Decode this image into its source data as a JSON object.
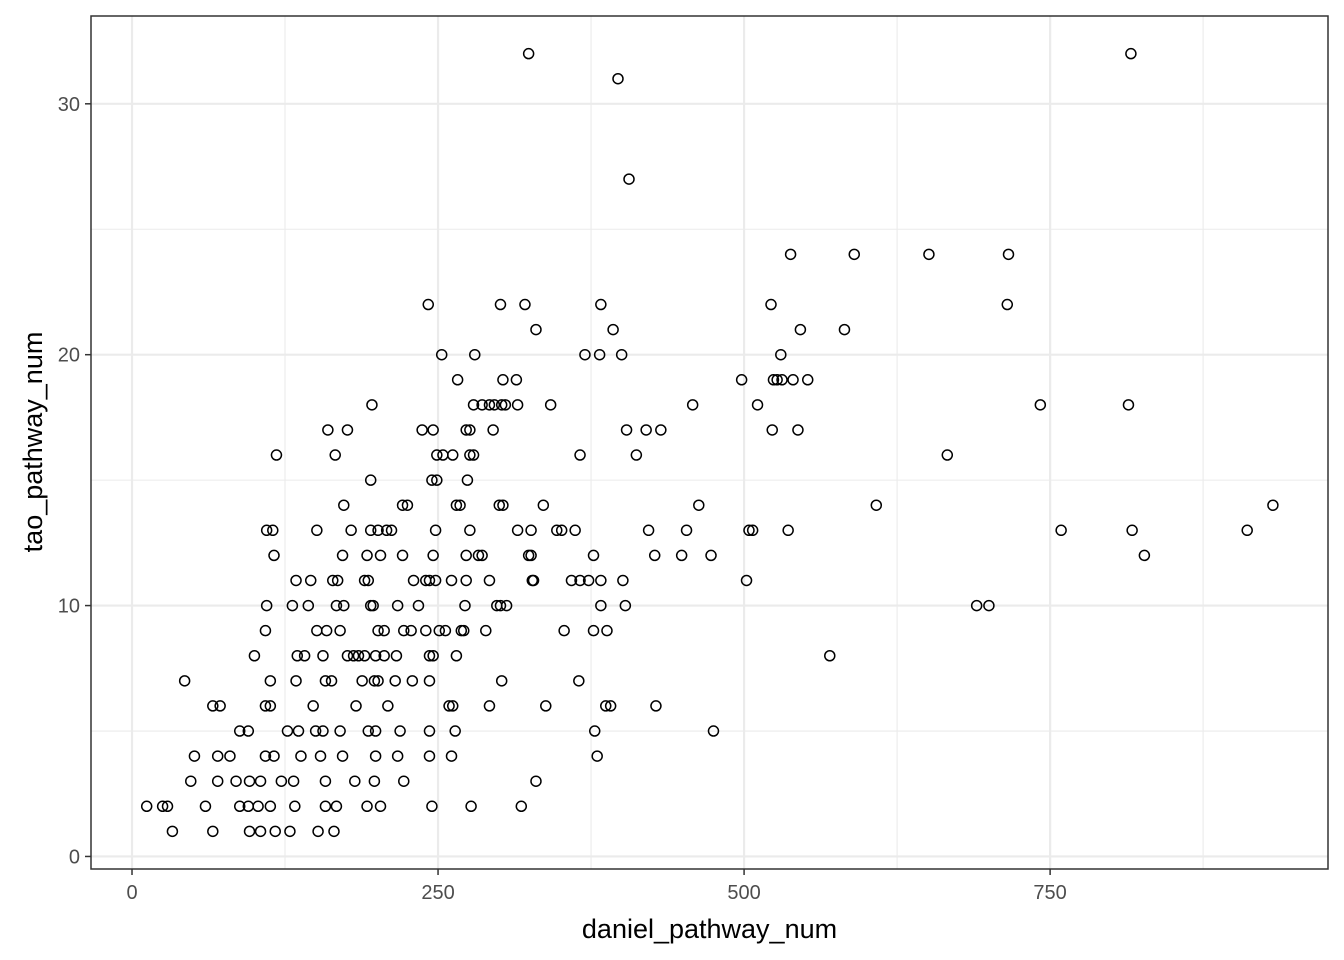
{
  "chart_data": {
    "type": "scatter",
    "title": "",
    "xlabel": "daniel_pathway_num",
    "ylabel": "tao_pathway_num",
    "xlim": [
      -33.5,
      977
    ],
    "ylim": [
      -0.5,
      33.5
    ],
    "xticks": [
      0,
      250,
      500,
      750
    ],
    "xtick_labels": [
      "0",
      "250",
      "500",
      "750"
    ],
    "yticks": [
      0,
      10,
      20,
      30
    ],
    "ytick_labels": [
      "0",
      "10",
      "20",
      "30"
    ],
    "grid": true,
    "marker": "open-circle",
    "points": [
      [
        324,
        32
      ],
      [
        816,
        32
      ],
      [
        397,
        31
      ],
      [
        406,
        27
      ],
      [
        538,
        24
      ],
      [
        590,
        24
      ],
      [
        651,
        24
      ],
      [
        716,
        24
      ],
      [
        242,
        22
      ],
      [
        301,
        22
      ],
      [
        321,
        22
      ],
      [
        383,
        22
      ],
      [
        522,
        22
      ],
      [
        715,
        22
      ],
      [
        330,
        21
      ],
      [
        393,
        21
      ],
      [
        546,
        21
      ],
      [
        582,
        21
      ],
      [
        253,
        20
      ],
      [
        280,
        20
      ],
      [
        370,
        20
      ],
      [
        382,
        20
      ],
      [
        400,
        20
      ],
      [
        530,
        20
      ],
      [
        266,
        19
      ],
      [
        303,
        19
      ],
      [
        314,
        19
      ],
      [
        498,
        19
      ],
      [
        524,
        19
      ],
      [
        527,
        19
      ],
      [
        531,
        19
      ],
      [
        540,
        19
      ],
      [
        552,
        19
      ],
      [
        196,
        18
      ],
      [
        279,
        18
      ],
      [
        286,
        18
      ],
      [
        292,
        18
      ],
      [
        296,
        18
      ],
      [
        302,
        18
      ],
      [
        305,
        18
      ],
      [
        315,
        18
      ],
      [
        342,
        18
      ],
      [
        458,
        18
      ],
      [
        511,
        18
      ],
      [
        742,
        18
      ],
      [
        814,
        18
      ],
      [
        160,
        17
      ],
      [
        176,
        17
      ],
      [
        237,
        17
      ],
      [
        246,
        17
      ],
      [
        273,
        17
      ],
      [
        276,
        17
      ],
      [
        295,
        17
      ],
      [
        404,
        17
      ],
      [
        420,
        17
      ],
      [
        432,
        17
      ],
      [
        523,
        17
      ],
      [
        544,
        17
      ],
      [
        118,
        16
      ],
      [
        166,
        16
      ],
      [
        249,
        16
      ],
      [
        254,
        16
      ],
      [
        262,
        16
      ],
      [
        276,
        16
      ],
      [
        279,
        16
      ],
      [
        366,
        16
      ],
      [
        412,
        16
      ],
      [
        666,
        16
      ],
      [
        195,
        15
      ],
      [
        245,
        15
      ],
      [
        249,
        15
      ],
      [
        274,
        15
      ],
      [
        173,
        14
      ],
      [
        221,
        14
      ],
      [
        225,
        14
      ],
      [
        265,
        14
      ],
      [
        268,
        14
      ],
      [
        300,
        14
      ],
      [
        303,
        14
      ],
      [
        336,
        14
      ],
      [
        463,
        14
      ],
      [
        608,
        14
      ],
      [
        932,
        14
      ],
      [
        110,
        13
      ],
      [
        115,
        13
      ],
      [
        151,
        13
      ],
      [
        179,
        13
      ],
      [
        195,
        13
      ],
      [
        201,
        13
      ],
      [
        208,
        13
      ],
      [
        212,
        13
      ],
      [
        248,
        13
      ],
      [
        276,
        13
      ],
      [
        315,
        13
      ],
      [
        326,
        13
      ],
      [
        347,
        13
      ],
      [
        351,
        13
      ],
      [
        362,
        13
      ],
      [
        422,
        13
      ],
      [
        453,
        13
      ],
      [
        504,
        13
      ],
      [
        507,
        13
      ],
      [
        536,
        13
      ],
      [
        759,
        13
      ],
      [
        817,
        13
      ],
      [
        911,
        13
      ],
      [
        116,
        12
      ],
      [
        172,
        12
      ],
      [
        192,
        12
      ],
      [
        203,
        12
      ],
      [
        221,
        12
      ],
      [
        246,
        12
      ],
      [
        273,
        12
      ],
      [
        283,
        12
      ],
      [
        286,
        12
      ],
      [
        324,
        12
      ],
      [
        326,
        12
      ],
      [
        377,
        12
      ],
      [
        427,
        12
      ],
      [
        449,
        12
      ],
      [
        473,
        12
      ],
      [
        827,
        12
      ],
      [
        134,
        11
      ],
      [
        146,
        11
      ],
      [
        164,
        11
      ],
      [
        168,
        11
      ],
      [
        190,
        11
      ],
      [
        193,
        11
      ],
      [
        230,
        11
      ],
      [
        240,
        11
      ],
      [
        243,
        11
      ],
      [
        248,
        11
      ],
      [
        261,
        11
      ],
      [
        273,
        11
      ],
      [
        292,
        11
      ],
      [
        327,
        11
      ],
      [
        328,
        11
      ],
      [
        359,
        11
      ],
      [
        366,
        11
      ],
      [
        373,
        11
      ],
      [
        383,
        11
      ],
      [
        401,
        11
      ],
      [
        502,
        11
      ],
      [
        110,
        10
      ],
      [
        131,
        10
      ],
      [
        144,
        10
      ],
      [
        167,
        10
      ],
      [
        173,
        10
      ],
      [
        195,
        10
      ],
      [
        197,
        10
      ],
      [
        217,
        10
      ],
      [
        234,
        10
      ],
      [
        272,
        10
      ],
      [
        298,
        10
      ],
      [
        301,
        10
      ],
      [
        306,
        10
      ],
      [
        383,
        10
      ],
      [
        403,
        10
      ],
      [
        690,
        10
      ],
      [
        700,
        10
      ],
      [
        109,
        9
      ],
      [
        151,
        9
      ],
      [
        159,
        9
      ],
      [
        170,
        9
      ],
      [
        201,
        9
      ],
      [
        206,
        9
      ],
      [
        222,
        9
      ],
      [
        228,
        9
      ],
      [
        240,
        9
      ],
      [
        251,
        9
      ],
      [
        256,
        9
      ],
      [
        269,
        9
      ],
      [
        271,
        9
      ],
      [
        289,
        9
      ],
      [
        353,
        9
      ],
      [
        377,
        9
      ],
      [
        388,
        9
      ],
      [
        100,
        8
      ],
      [
        135,
        8
      ],
      [
        141,
        8
      ],
      [
        156,
        8
      ],
      [
        176,
        8
      ],
      [
        181,
        8
      ],
      [
        185,
        8
      ],
      [
        190,
        8
      ],
      [
        199,
        8
      ],
      [
        206,
        8
      ],
      [
        216,
        8
      ],
      [
        243,
        8
      ],
      [
        246,
        8
      ],
      [
        265,
        8
      ],
      [
        570,
        8
      ],
      [
        43,
        7
      ],
      [
        113,
        7
      ],
      [
        134,
        7
      ],
      [
        158,
        7
      ],
      [
        163,
        7
      ],
      [
        188,
        7
      ],
      [
        198,
        7
      ],
      [
        201,
        7
      ],
      [
        215,
        7
      ],
      [
        229,
        7
      ],
      [
        243,
        7
      ],
      [
        302,
        7
      ],
      [
        365,
        7
      ],
      [
        66,
        6
      ],
      [
        72,
        6
      ],
      [
        109,
        6
      ],
      [
        113,
        6
      ],
      [
        148,
        6
      ],
      [
        183,
        6
      ],
      [
        209,
        6
      ],
      [
        259,
        6
      ],
      [
        262,
        6
      ],
      [
        292,
        6
      ],
      [
        338,
        6
      ],
      [
        387,
        6
      ],
      [
        391,
        6
      ],
      [
        428,
        6
      ],
      [
        88,
        5
      ],
      [
        95,
        5
      ],
      [
        127,
        5
      ],
      [
        136,
        5
      ],
      [
        150,
        5
      ],
      [
        156,
        5
      ],
      [
        170,
        5
      ],
      [
        193,
        5
      ],
      [
        199,
        5
      ],
      [
        219,
        5
      ],
      [
        243,
        5
      ],
      [
        264,
        5
      ],
      [
        378,
        5
      ],
      [
        475,
        5
      ],
      [
        51,
        4
      ],
      [
        70,
        4
      ],
      [
        80,
        4
      ],
      [
        109,
        4
      ],
      [
        116,
        4
      ],
      [
        138,
        4
      ],
      [
        154,
        4
      ],
      [
        172,
        4
      ],
      [
        199,
        4
      ],
      [
        217,
        4
      ],
      [
        243,
        4
      ],
      [
        261,
        4
      ],
      [
        380,
        4
      ],
      [
        48,
        3
      ],
      [
        70,
        3
      ],
      [
        85,
        3
      ],
      [
        96,
        3
      ],
      [
        105,
        3
      ],
      [
        122,
        3
      ],
      [
        132,
        3
      ],
      [
        158,
        3
      ],
      [
        182,
        3
      ],
      [
        198,
        3
      ],
      [
        222,
        3
      ],
      [
        330,
        3
      ],
      [
        12,
        2
      ],
      [
        25,
        2
      ],
      [
        29,
        2
      ],
      [
        60,
        2
      ],
      [
        88,
        2
      ],
      [
        95,
        2
      ],
      [
        103,
        2
      ],
      [
        113,
        2
      ],
      [
        133,
        2
      ],
      [
        158,
        2
      ],
      [
        167,
        2
      ],
      [
        192,
        2
      ],
      [
        203,
        2
      ],
      [
        245,
        2
      ],
      [
        277,
        2
      ],
      [
        318,
        2
      ],
      [
        33,
        1
      ],
      [
        66,
        1
      ],
      [
        96,
        1
      ],
      [
        105,
        1
      ],
      [
        117,
        1
      ],
      [
        129,
        1
      ],
      [
        152,
        1
      ],
      [
        165,
        1
      ]
    ]
  }
}
